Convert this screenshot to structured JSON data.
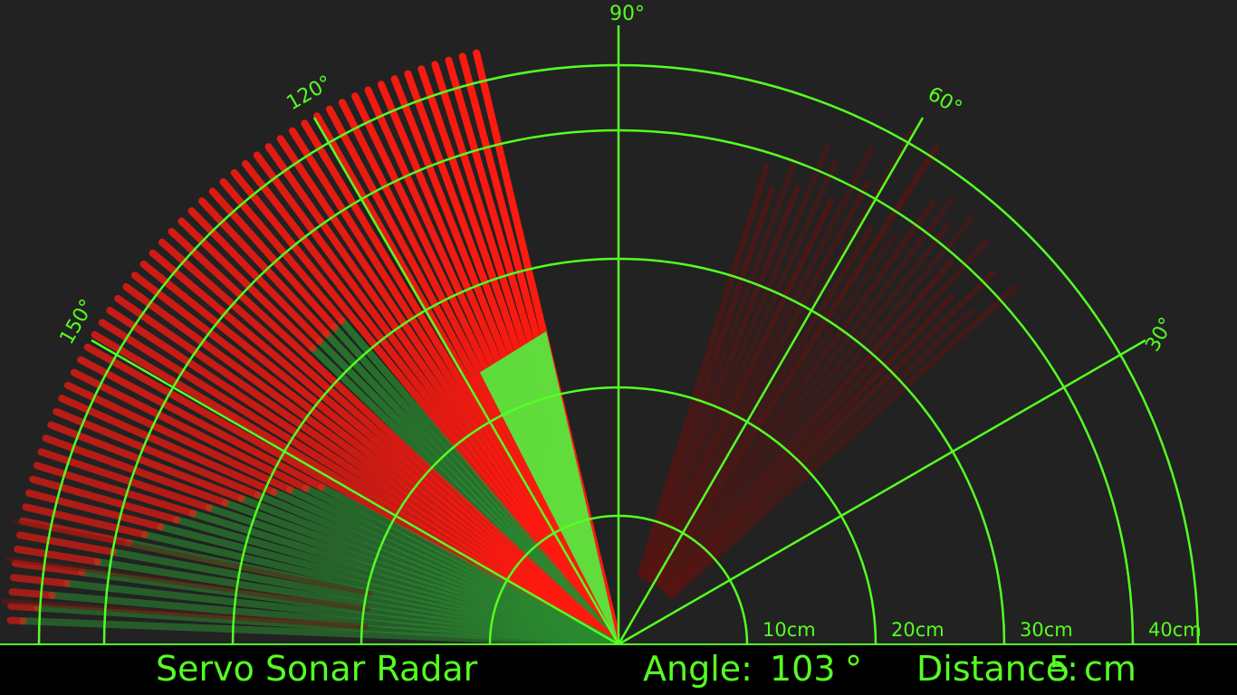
{
  "app": {
    "title": "Servo Sonar Radar"
  },
  "status": {
    "angle_label": "Angle:",
    "angle_value": "103",
    "angle_unit": "°",
    "distance_label": "Distance:",
    "distance_value": "5",
    "distance_unit": "cm"
  },
  "radar": {
    "range_labels": [
      "10cm",
      "20cm",
      "30cm",
      "40cm"
    ],
    "angle_labels": [
      "30°",
      "60°",
      "90°",
      "120°",
      "150°"
    ],
    "current_angle_deg": 103,
    "current_distance_cm": 5,
    "colors": {
      "grid": "#55ff22",
      "background": "#222222",
      "status_bar": "#000000",
      "object_trail": "#ff1a10",
      "clear_trail": "#2a8a30",
      "sweep_near": "#44ff44"
    }
  }
}
